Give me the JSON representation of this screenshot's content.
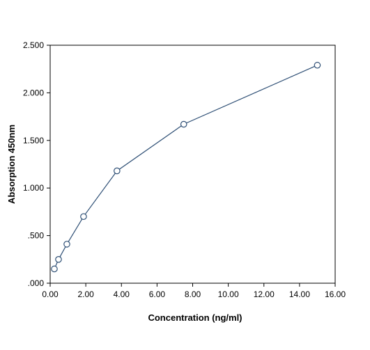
{
  "chart_data": {
    "type": "line",
    "title": "",
    "xlabel": "Concentration (ng/ml)",
    "ylabel": "Absorption 450nm",
    "xlim": [
      0,
      16
    ],
    "ylim": [
      0,
      2.5
    ],
    "x_ticks": [
      0,
      2,
      4,
      6,
      8,
      10,
      12,
      14,
      16
    ],
    "x_tick_labels": [
      "0.00",
      "2.00",
      "4.00",
      "6.00",
      "8.00",
      "10.00",
      "12.00",
      "14.00",
      "16.00"
    ],
    "y_ticks": [
      0,
      0.5,
      1.0,
      1.5,
      2.0,
      2.5
    ],
    "y_tick_labels": [
      ".000",
      ".500",
      "1.000",
      "1.500",
      "2.000",
      "2.500"
    ],
    "grid": false,
    "legend": "none",
    "series": [
      {
        "x": [
          0.234,
          0.469,
          0.938,
          1.875,
          3.75,
          7.5,
          15
        ],
        "y": [
          0.15,
          0.25,
          0.41,
          0.7,
          1.18,
          1.67,
          2.29
        ],
        "marker": "open-circle",
        "color": "#2e4f75"
      }
    ]
  }
}
